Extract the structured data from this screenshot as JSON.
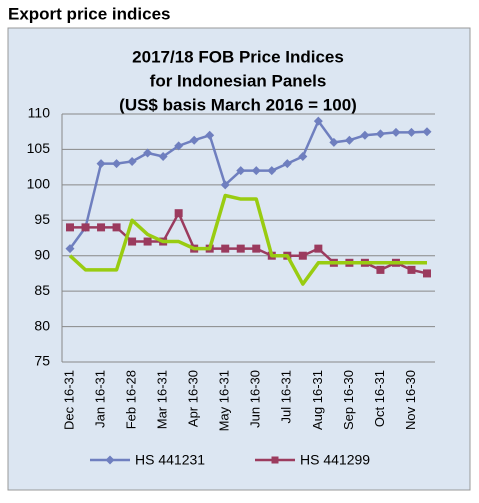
{
  "heading": "Export price indices",
  "chart_data": {
    "type": "line",
    "title": [
      "2017/18 FOB Price Indices",
      "for Indonesian Panels",
      "(US$ basis March 2016 = 100)"
    ],
    "categories": [
      "Dec 16-31",
      null,
      "Jan 16-31",
      null,
      "Feb 16-28",
      null,
      "Mar 16-31",
      null,
      "Apr 16-30",
      null,
      "May 16-31",
      null,
      "Jun 16-30",
      null,
      "Jul 16-31",
      null,
      "Aug 16-31",
      null,
      "Sep 16-30",
      null,
      "Oct 16-31",
      null,
      "Nov 16-30",
      null
    ],
    "series": [
      {
        "name": "HS 441231",
        "color": "#6f7fbf",
        "marker": "diamond",
        "values": [
          91,
          94,
          103,
          103,
          103.3,
          104.5,
          104,
          105.5,
          106.3,
          107,
          100,
          102,
          102,
          102,
          103,
          104,
          109,
          106,
          106.3,
          107,
          107.2,
          107.4,
          107.4,
          107.5
        ]
      },
      {
        "name": "HS 441299",
        "color": "#9b3b5e",
        "marker": "square",
        "values": [
          94,
          94,
          94,
          94,
          92,
          92,
          92,
          96,
          91,
          91,
          91,
          91,
          91,
          90,
          90,
          90,
          91,
          89,
          89,
          89,
          88,
          89,
          88,
          87.5
        ]
      },
      {
        "color": "#99cc11",
        "marker": null,
        "values": [
          90,
          88,
          88,
          88,
          95,
          93,
          92,
          92,
          91,
          91,
          98.5,
          98,
          98,
          90,
          90,
          86,
          89,
          89,
          89,
          89,
          89,
          89,
          89,
          89
        ]
      }
    ],
    "ylim": [
      75,
      110
    ],
    "yticks": [
      75,
      80,
      85,
      90,
      95,
      100,
      105,
      110
    ],
    "grid": true,
    "legend": "bottom"
  }
}
